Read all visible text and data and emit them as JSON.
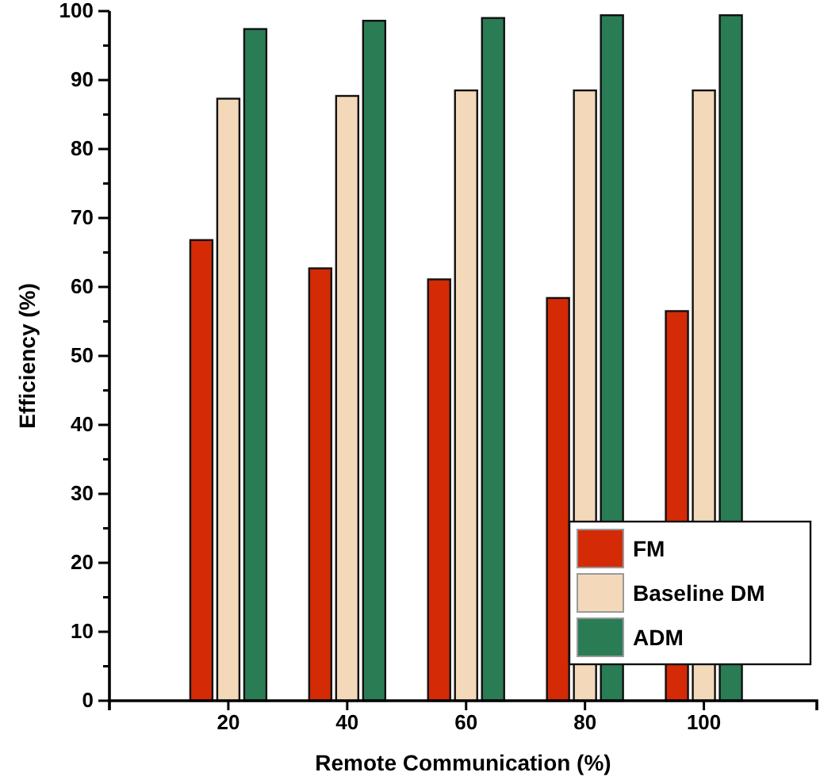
{
  "chart_data": {
    "type": "bar",
    "xlabel": "Remote Communication (%)",
    "ylabel": "Efficiency (%)",
    "x": [
      20,
      40,
      60,
      80,
      100
    ],
    "xlim": [
      0,
      119
    ],
    "xticks": [
      20,
      40,
      60,
      80,
      100
    ],
    "ylim": [
      0,
      100
    ],
    "yticks": [
      0,
      {
        "value": 5,
        "label": null
      },
      10,
      {
        "value": 15,
        "label": null
      },
      20,
      {
        "value": 25,
        "label": null
      },
      30,
      {
        "value": 35,
        "label": null
      },
      40,
      {
        "value": 45,
        "label": null
      },
      50,
      {
        "value": 55,
        "label": null
      },
      60,
      {
        "value": 65,
        "label": null
      },
      70,
      {
        "value": 75,
        "label": null
      },
      80,
      {
        "value": 85,
        "label": null
      },
      90,
      {
        "value": 95,
        "label": null
      },
      100
    ],
    "series": [
      {
        "name": "FM",
        "color": "#d42a06",
        "values": [
          66.8,
          62.7,
          61.1,
          58.4,
          56.5
        ]
      },
      {
        "name": "Baseline DM",
        "color": "#f3d9b9",
        "values": [
          87.3,
          87.7,
          88.5,
          88.5,
          88.5
        ]
      },
      {
        "name": "ADM",
        "color": "#2a7c55",
        "values": [
          97.4,
          98.6,
          99.0,
          99.4,
          99.4
        ]
      }
    ],
    "legend": "bottom right",
    "grid": false
  }
}
